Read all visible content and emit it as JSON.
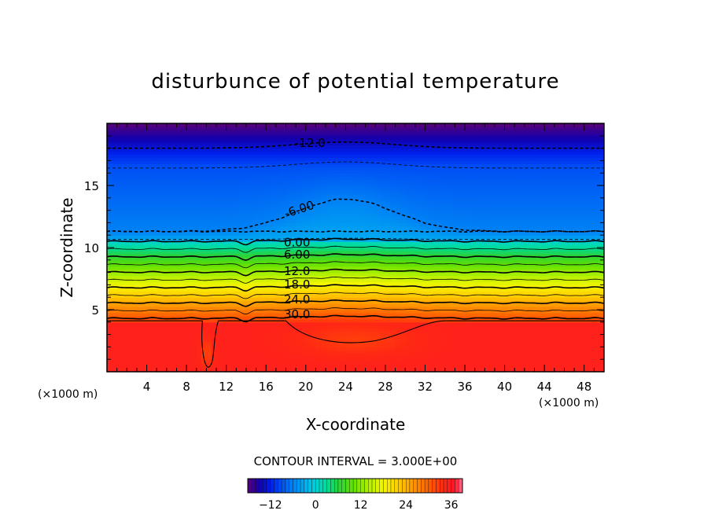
{
  "chart_data": {
    "type": "contour",
    "title": "disturbunce of potential temperature",
    "xlabel": "X-coordinate",
    "ylabel": "Z-coordinate",
    "x_unit_left": "(×1000 m)",
    "x_unit_right": "(×1000 m)",
    "xlim": [
      0,
      50
    ],
    "ylim": [
      0,
      20
    ],
    "x_ticks": [
      4,
      8,
      12,
      16,
      20,
      24,
      28,
      32,
      36,
      40,
      44,
      48
    ],
    "y_ticks": [
      5,
      10,
      15
    ],
    "contour_interval_text": "CONTOUR INTERVAL = 3.000E+00",
    "contour_labels": [
      {
        "text": "-12.0",
        "x": 18.9,
        "z": 18.1
      },
      {
        "text": "-6.00",
        "x": 18.0,
        "z": 12.4
      },
      {
        "text": "0.00",
        "x": 17.8,
        "z": 10.1
      },
      {
        "text": "6.00",
        "x": 17.8,
        "z": 9.1
      },
      {
        "text": "12.0",
        "x": 17.8,
        "z": 7.8
      },
      {
        "text": "18.0",
        "x": 17.8,
        "z": 6.7
      },
      {
        "text": "24.0",
        "x": 17.8,
        "z": 5.5
      },
      {
        "text": "30.0",
        "x": 17.8,
        "z": 4.3
      }
    ],
    "colorbar": {
      "range": [
        -18,
        39
      ],
      "tick_values": [
        -12,
        0,
        12,
        24,
        36
      ],
      "tick_labels": [
        "−12",
        "0",
        "12",
        "24",
        "36"
      ]
    }
  }
}
